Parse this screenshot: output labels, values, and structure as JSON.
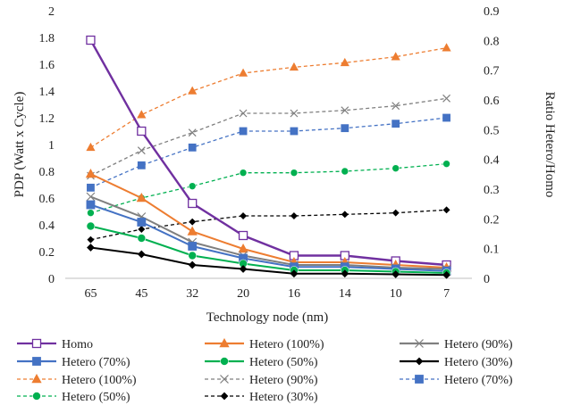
{
  "chart_data": {
    "type": "line",
    "title": "",
    "xlabel": "Technology node (nm)",
    "ylabel": "PDP (Watt x Cycle)",
    "y2label": "Ratio Hetero/Homo",
    "categories": [
      "65",
      "45",
      "32",
      "20",
      "16",
      "14",
      "10",
      "7"
    ],
    "ylim": [
      0,
      2
    ],
    "y2lim": [
      0,
      0.9
    ],
    "yticks": [
      "0",
      "0.2",
      "0.4",
      "0.6",
      "0.8",
      "1",
      "1.2",
      "1.4",
      "1.6",
      "1.8",
      "2"
    ],
    "y2ticks": [
      "0",
      "0.1",
      "0.2",
      "0.3",
      "0.4",
      "0.5",
      "0.6",
      "0.7",
      "0.8",
      "0.9"
    ],
    "grid": false,
    "legend_position": "bottom",
    "series": [
      {
        "name": "Homo",
        "axis": "left",
        "color": "#7030A0",
        "dash": false,
        "marker": "square-open",
        "values": [
          1.78,
          1.1,
          0.56,
          0.32,
          0.17,
          0.17,
          0.13,
          0.1
        ]
      },
      {
        "name": "Hetero (100%)",
        "axis": "left",
        "color": "#ED7D31",
        "dash": false,
        "marker": "triangle",
        "values": [
          0.78,
          0.6,
          0.35,
          0.22,
          0.12,
          0.12,
          0.1,
          0.08
        ]
      },
      {
        "name": "Hetero (90%)",
        "axis": "left",
        "color": "#7F7F7F",
        "dash": false,
        "marker": "x",
        "values": [
          0.61,
          0.46,
          0.27,
          0.17,
          0.1,
          0.1,
          0.08,
          0.07
        ]
      },
      {
        "name": "Hetero (70%)",
        "axis": "left",
        "color": "#4472C4",
        "dash": false,
        "marker": "square",
        "values": [
          0.55,
          0.42,
          0.24,
          0.15,
          0.085,
          0.085,
          0.07,
          0.055
        ]
      },
      {
        "name": "Hetero (50%)",
        "axis": "left",
        "color": "#00B050",
        "dash": false,
        "marker": "circle",
        "values": [
          0.39,
          0.3,
          0.17,
          0.11,
          0.06,
          0.06,
          0.05,
          0.04
        ]
      },
      {
        "name": "Hetero (30%)",
        "axis": "left",
        "color": "#000000",
        "dash": false,
        "marker": "diamond",
        "values": [
          0.23,
          0.18,
          0.1,
          0.07,
          0.035,
          0.035,
          0.03,
          0.025
        ]
      },
      {
        "name": "Hetero (100%)",
        "axis": "right",
        "color": "#ED7D31",
        "dash": true,
        "marker": "triangle",
        "values": [
          0.44,
          0.55,
          0.63,
          0.69,
          0.71,
          0.725,
          0.745,
          0.775
        ]
      },
      {
        "name": "Hetero (90%)",
        "axis": "right",
        "color": "#7F7F7F",
        "dash": true,
        "marker": "x",
        "values": [
          0.345,
          0.43,
          0.49,
          0.555,
          0.555,
          0.565,
          0.58,
          0.605
        ]
      },
      {
        "name": "Hetero (70%)",
        "axis": "right",
        "color": "#4472C4",
        "dash": true,
        "marker": "square",
        "values": [
          0.305,
          0.38,
          0.44,
          0.495,
          0.495,
          0.505,
          0.52,
          0.54
        ]
      },
      {
        "name": "Hetero (50%)",
        "axis": "right",
        "color": "#00B050",
        "dash": true,
        "marker": "circle",
        "values": [
          0.22,
          0.27,
          0.31,
          0.355,
          0.355,
          0.36,
          0.37,
          0.385
        ]
      },
      {
        "name": "Hetero (30%)",
        "axis": "right",
        "color": "#000000",
        "dash": true,
        "marker": "diamond",
        "values": [
          0.13,
          0.165,
          0.19,
          0.21,
          0.21,
          0.215,
          0.22,
          0.23
        ]
      }
    ]
  }
}
